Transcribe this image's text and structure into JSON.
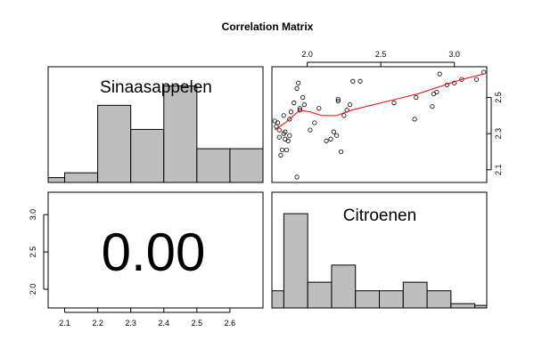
{
  "chart_data": {
    "type": "scatter-matrix",
    "title": "Correlation Matrix",
    "variables": [
      "Sinaasappelen",
      "Citroenen"
    ],
    "correlation_text": "0.00",
    "axes": {
      "x_range": [
        2.05,
        3.21
      ],
      "y_range": [
        2.03,
        2.66
      ],
      "x_ticks": [
        "2.0",
        "2.5",
        "3.0"
      ],
      "y_ticks": [
        "2.1",
        "2.3",
        "2.5"
      ],
      "corr_panel_x_ticks": [
        "2.1",
        "2.2",
        "2.3",
        "2.4",
        "2.5",
        "2.6"
      ],
      "corr_panel_y_ticks": [
        "2.0",
        "2.5",
        "3.0"
      ]
    },
    "histograms": [
      {
        "variable": "Sinaasappelen",
        "bins": [
          2.05,
          2.1,
          2.2,
          2.3,
          2.4,
          2.5,
          2.6,
          2.7
        ],
        "heights": [
          1,
          2,
          16,
          11,
          20,
          7,
          7
        ]
      },
      {
        "variable": "Citroenen",
        "bins": [
          1.75,
          1.8,
          1.9,
          2.0,
          2.1,
          2.2,
          2.3,
          2.4,
          2.5,
          2.6,
          2.65
        ],
        "heights": [
          2,
          11,
          3,
          5,
          2,
          2,
          3,
          2,
          0.5,
          0.3
        ]
      }
    ],
    "scatter": {
      "x_variable": "Citroenen",
      "y_variable": "Sinaasappelen",
      "points": [
        [
          1.78,
          2.37
        ],
        [
          1.79,
          2.34
        ],
        [
          1.8,
          2.36
        ],
        [
          1.81,
          2.32
        ],
        [
          1.81,
          2.28
        ],
        [
          1.82,
          2.18
        ],
        [
          1.83,
          2.21
        ],
        [
          1.84,
          2.3
        ],
        [
          1.85,
          2.31
        ],
        [
          1.85,
          2.27
        ],
        [
          1.87,
          2.26
        ],
        [
          1.86,
          2.21
        ],
        [
          1.88,
          2.29
        ],
        [
          1.89,
          2.42
        ],
        [
          1.91,
          2.47
        ],
        [
          1.93,
          2.55
        ],
        [
          1.94,
          2.58
        ],
        [
          1.95,
          2.44
        ],
        [
          1.97,
          2.5
        ],
        [
          1.98,
          2.46
        ],
        [
          2.02,
          2.32
        ],
        [
          2.05,
          2.36
        ],
        [
          2.08,
          2.44
        ],
        [
          2.13,
          2.26
        ],
        [
          2.16,
          2.27
        ],
        [
          2.18,
          2.31
        ],
        [
          2.2,
          2.29
        ],
        [
          2.21,
          2.49
        ],
        [
          2.23,
          2.2
        ],
        [
          2.25,
          2.4
        ],
        [
          2.27,
          2.43
        ],
        [
          2.29,
          2.46
        ],
        [
          2.31,
          2.59
        ],
        [
          2.36,
          2.59
        ],
        [
          1.93,
          2.06
        ],
        [
          1.84,
          2.4
        ],
        [
          1.88,
          2.38
        ],
        [
          1.95,
          2.43
        ],
        [
          2.21,
          2.48
        ],
        [
          2.59,
          2.47
        ],
        [
          2.73,
          2.38
        ],
        [
          2.74,
          2.5
        ],
        [
          2.85,
          2.45
        ],
        [
          2.86,
          2.52
        ],
        [
          2.88,
          2.53
        ],
        [
          2.9,
          2.63
        ],
        [
          2.95,
          2.57
        ],
        [
          3.0,
          2.58
        ],
        [
          3.05,
          2.6
        ],
        [
          3.15,
          2.6
        ],
        [
          3.2,
          2.64
        ]
      ]
    },
    "smoother": [
      [
        1.78,
        2.32
      ],
      [
        1.85,
        2.36
      ],
      [
        1.95,
        2.43
      ],
      [
        2.02,
        2.42
      ],
      [
        2.1,
        2.4
      ],
      [
        2.2,
        2.4
      ],
      [
        2.3,
        2.43
      ],
      [
        2.45,
        2.46
      ],
      [
        2.6,
        2.49
      ],
      [
        2.75,
        2.52
      ],
      [
        2.9,
        2.56
      ],
      [
        3.05,
        2.6
      ],
      [
        3.2,
        2.63
      ]
    ],
    "smoother_color": "#ff0000",
    "bar_color": "#bebebe"
  }
}
